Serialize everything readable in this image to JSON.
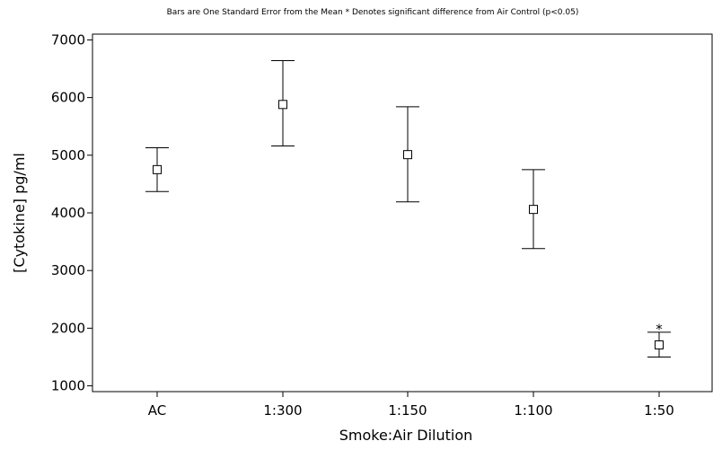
{
  "chart_data": {
    "type": "scatter",
    "subtitle": "Bars are One Standard Error from the Mean  * Denotes significant difference from Air Control (p<0.05)",
    "xlabel": "Smoke:Air Dilution",
    "ylabel": "[Cytokine] pg/ml",
    "categories": [
      "AC",
      "1:300",
      "1:150",
      "1:100",
      "1:50"
    ],
    "ylim": [
      900,
      7100
    ],
    "yticks": [
      1000,
      2000,
      3000,
      4000,
      5000,
      6000,
      7000
    ],
    "ytick_labels": [
      "1000",
      "2000",
      "3000",
      "4000",
      "5000",
      "6000",
      "7000"
    ],
    "grid": false,
    "marker": "open-square",
    "series": [
      {
        "means": [
          4750,
          5880,
          5010,
          4060,
          1710
        ],
        "error_upper": [
          5130,
          6640,
          5840,
          4750,
          1930
        ],
        "error_lower": [
          4370,
          5160,
          4190,
          3380,
          1500
        ]
      }
    ],
    "annotations": [
      {
        "category": "1:50",
        "text": "*",
        "y": 2060
      }
    ],
    "colors": {
      "ink": "#000000",
      "background": "#ffffff"
    }
  }
}
